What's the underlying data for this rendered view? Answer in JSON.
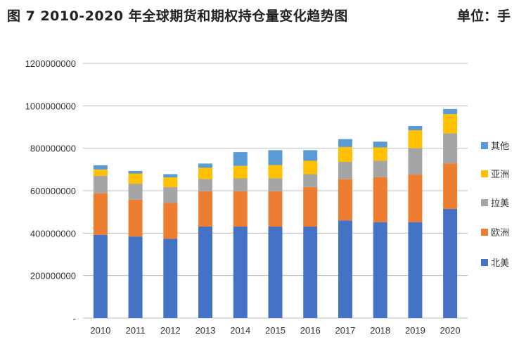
{
  "header": {
    "title": "图 7  2010-2020 年全球期货和期权持仓量变化趋势图",
    "unit": "单位：手"
  },
  "colors": {
    "北美": "#4472c4",
    "欧洲": "#ed7d31",
    "拉美": "#a5a5a5",
    "亚洲": "#ffc000",
    "其他": "#5b9bd5",
    "grid": "#bfbfbf"
  },
  "chart_data": {
    "type": "bar",
    "stacked": true,
    "title": "图 7  2010-2020 年全球期货和期权持仓量变化趋势图",
    "unit": "单位：手",
    "categories": [
      "2010",
      "2011",
      "2012",
      "2013",
      "2014",
      "2015",
      "2016",
      "2017",
      "2018",
      "2019",
      "2020"
    ],
    "series": [
      {
        "name": "北美",
        "values": [
          392000000,
          384000000,
          374000000,
          431000000,
          431000000,
          431000000,
          431000000,
          460000000,
          452000000,
          452000000,
          514000000
        ]
      },
      {
        "name": "欧洲",
        "values": [
          196000000,
          174000000,
          168000000,
          166000000,
          166000000,
          166000000,
          186000000,
          194000000,
          212000000,
          224000000,
          214000000
        ]
      },
      {
        "name": "拉美",
        "values": [
          82000000,
          75000000,
          75000000,
          58000000,
          61000000,
          62000000,
          61000000,
          82000000,
          77000000,
          125000000,
          142000000
        ]
      },
      {
        "name": "亚洲",
        "values": [
          30000000,
          48000000,
          46000000,
          53000000,
          59000000,
          62000000,
          63000000,
          70000000,
          63000000,
          84000000,
          91000000
        ]
      },
      {
        "name": "其他",
        "values": [
          20000000,
          12000000,
          15000000,
          20000000,
          65000000,
          70000000,
          50000000,
          37000000,
          27000000,
          20000000,
          24000000
        ]
      }
    ],
    "yticks": [
      "-",
      "200000000",
      "400000000",
      "600000000",
      "800000000",
      "1000000000",
      "1200000000"
    ],
    "ylim": [
      0,
      1200000000
    ],
    "grid": true,
    "legend_position": "right",
    "legend_order": [
      "其他",
      "亚洲",
      "拉美",
      "欧洲",
      "北美"
    ]
  }
}
